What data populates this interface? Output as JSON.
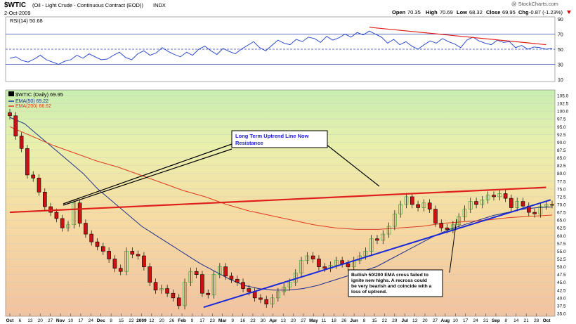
{
  "header": {
    "symbol": "$WTIC",
    "description": "(Oil - Light Crude - Continuous Contract (EOD))",
    "exchange": "INDX",
    "date": "2-Oct-2009",
    "watermark": "@ StockCharts.com",
    "quote": {
      "open_label": "Open",
      "open": "70.35",
      "high_label": "High",
      "high": "70.69",
      "low_label": "Low",
      "low": "68.32",
      "close_label": "Close",
      "close": "69.95",
      "chg_label": "Chg",
      "chg": "-0.87 (-1.23%)",
      "chg_icon": "down-arrow-icon"
    }
  },
  "rsi_panel": {
    "label": "RSI(14) 50.68",
    "ticks": [
      "90",
      "70",
      "50",
      "30",
      "10"
    ],
    "colors": {
      "line": "#1a3cc8",
      "bands": "#2a3fb0",
      "trend": "#e0201c"
    }
  },
  "price_panel": {
    "legend": [
      {
        "name": "$WTIC (Daily) 69.95",
        "color": "#000000"
      },
      {
        "name": "EMA(50) 69.22",
        "color": "#1f2f8f"
      },
      {
        "name": "EMA(200) 66.62",
        "color": "#e03a20"
      }
    ],
    "y_ticks": [
      "105.0",
      "102.5",
      "100.0",
      "97.5",
      "95.0",
      "92.5",
      "90.0",
      "87.5",
      "85.0",
      "82.5",
      "80.0",
      "77.5",
      "75.0",
      "72.5",
      "70.0",
      "67.5",
      "65.0",
      "62.5",
      "60.0",
      "57.5",
      "55.0",
      "52.5",
      "50.0",
      "47.5",
      "45.0",
      "42.5",
      "40.0",
      "37.5",
      "35.0"
    ],
    "annotations": {
      "box1": "Long Term Uptrend Line Now Resistance",
      "box2": "Bullish 50/200 EMA cross failed to ignite new highs.  A recross could be very bearish and coincide with a loss of uptrend."
    },
    "colors": {
      "up": "#2aa02a",
      "down": "#d01010",
      "resistance": "#e0201c",
      "support": "#1a2ad8",
      "annotation_text": "#1a1ad0"
    }
  },
  "x_axis": {
    "ticks": [
      "Oct",
      "6",
      "13",
      "20",
      "27",
      "Nov",
      "10",
      "17",
      "24",
      "Dec",
      "8",
      "15",
      "22",
      "2009",
      "12",
      "20",
      "26",
      "Feb",
      "9",
      "17",
      "23",
      "Mar",
      "9",
      "16",
      "23",
      "30",
      "Apr",
      "13",
      "20",
      "27",
      "May",
      "11",
      "18",
      "26",
      "Jun",
      "8",
      "15",
      "22",
      "29",
      "Jul",
      "13",
      "20",
      "27",
      "Aug",
      "10",
      "17",
      "24",
      "31",
      "Sep",
      "8",
      "14",
      "21",
      "28",
      "Oct"
    ],
    "bold": [
      "Oct",
      "Nov",
      "Dec",
      "2009",
      "Feb",
      "Mar",
      "Apr",
      "May",
      "Jun",
      "Jul",
      "Aug",
      "Sep"
    ]
  },
  "chart_data": [
    {
      "type": "line",
      "title": "RSI(14) 50.68",
      "ylim": [
        10,
        90
      ],
      "reference_lines": [
        70,
        50,
        30
      ],
      "x_range": [
        "2008-10-06",
        "2009-10-02"
      ],
      "series": [
        {
          "name": "RSI(14) 50.68",
          "values": [
            38,
            40,
            35,
            33,
            37,
            42,
            36,
            33,
            30,
            34,
            36,
            42,
            38,
            44,
            40,
            36,
            37,
            42,
            46,
            39,
            36,
            44,
            48,
            42,
            45,
            52,
            47,
            43,
            40,
            46,
            42,
            50,
            54,
            48,
            43,
            51,
            47,
            44,
            50,
            55,
            60,
            52,
            48,
            55,
            62,
            58,
            56,
            63,
            60,
            66,
            64,
            59,
            67,
            62,
            65,
            70,
            66,
            72,
            69,
            74,
            70,
            66,
            58,
            63,
            56,
            60,
            54,
            50,
            56,
            61,
            58,
            64,
            60,
            57,
            52,
            62,
            66,
            61,
            58,
            56,
            62,
            59,
            60,
            52,
            55,
            50,
            53,
            52,
            50,
            51
          ]
        }
      ],
      "trend_line": {
        "from_index": 59,
        "from_value": 79,
        "to_index": 88,
        "to_value": 56
      }
    },
    {
      "type": "candlestick",
      "title": "$WTIC (Oil - Light Crude - Continuous Contract (EOD))",
      "ylim": [
        35,
        105
      ],
      "x_range": [
        "2008-10-06",
        "2009-10-02"
      ],
      "series": [
        {
          "name": "$WTIC (Daily) 69.95",
          "close": [
            98.5,
            92,
            88,
            79.5,
            78.5,
            74,
            69.3,
            67.5,
            65.5,
            62.5,
            63.5,
            70.5,
            64,
            60.5,
            58,
            56.5,
            55,
            52.5,
            49.5,
            48.5,
            55,
            54,
            53.5,
            50,
            45,
            42.5,
            43,
            41.5,
            40,
            37.5,
            45,
            48.5,
            47.5,
            41.5,
            41,
            47.5,
            50,
            47,
            46,
            45,
            43,
            42,
            40,
            39.5,
            38,
            40,
            42,
            43.5,
            45,
            48,
            52,
            53.5,
            52.5,
            50,
            49.5,
            50.5,
            52,
            51,
            50,
            52,
            53.5,
            55,
            59,
            58.5,
            60.5,
            63,
            67,
            70,
            72.5,
            70,
            69,
            70.5,
            68.5,
            64,
            62.5,
            62,
            63.5,
            66,
            68.5,
            71,
            70,
            71.5,
            73,
            72.5,
            73.5,
            72,
            69,
            71,
            69.5,
            67.5,
            67,
            69.5,
            70,
            69.95
          ]
        },
        {
          "name": "EMA(50) 69.22",
          "values": [
            98,
            96,
            92,
            88,
            84,
            80,
            75,
            71,
            67,
            63,
            60,
            57,
            54,
            51,
            48.5,
            46,
            44,
            43,
            42.5,
            42.5,
            43,
            44,
            45.5,
            47,
            48.5,
            50,
            52.5,
            55,
            57.5,
            60,
            62,
            63.5,
            65,
            66.5,
            67.5,
            68.5,
            69,
            69.22
          ]
        },
        {
          "name": "EMA(200) 66.62",
          "values": [
            95,
            92,
            89,
            86.5,
            84,
            82,
            79.5,
            77,
            74.5,
            72.5,
            70,
            68,
            66.5,
            65,
            63.5,
            62.5,
            62,
            62,
            62.5,
            63,
            64,
            64.5,
            65,
            65.8,
            66.2,
            66.62
          ]
        }
      ],
      "resistance_line": {
        "from": [
          "2008-10-06",
          67.5
        ],
        "to": [
          "2009-09-28",
          75.5
        ]
      },
      "support_line": {
        "from": [
          "2009-02-12",
          37
        ],
        "to": [
          "2009-10-01",
          71.5
        ]
      }
    }
  ]
}
